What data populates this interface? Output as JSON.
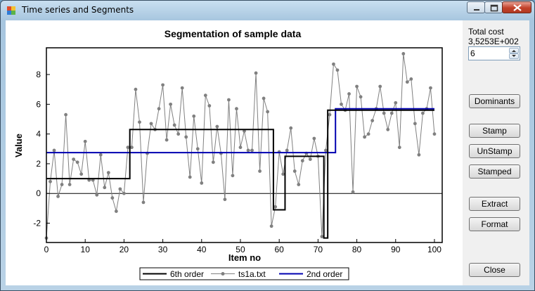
{
  "window": {
    "title": "Time series and Segments"
  },
  "side": {
    "total_cost_label": "Total cost",
    "total_cost_value": "3,5253E+002",
    "segments_value": "6",
    "buttons": {
      "dominants": "Dominants",
      "stamp": "Stamp",
      "unstamp": "UnStamp",
      "stamped": "Stamped",
      "extract": "Extract",
      "format": "Format",
      "close": "Close"
    }
  },
  "chart_data": {
    "type": "line",
    "title": "Segmentation of sample data",
    "xlabel": "Item no",
    "ylabel": "Value",
    "xlim": [
      0,
      102
    ],
    "ylim": [
      -3.3,
      9.8
    ],
    "xticks": [
      0,
      10,
      20,
      30,
      40,
      50,
      60,
      70,
      80,
      90,
      100
    ],
    "yticks": [
      -2,
      0,
      2,
      4,
      6,
      8
    ],
    "zero_line": true,
    "legend_position": "bottom",
    "colors": {
      "sixth_order": "#000000",
      "series": "#808080",
      "second_order": "#0000b0"
    },
    "series": [
      {
        "name": "6th order",
        "type": "step",
        "points": [
          [
            0,
            1.0
          ],
          [
            21.5,
            1.0
          ],
          [
            21.5,
            4.3
          ],
          [
            58.5,
            4.3
          ],
          [
            58.5,
            -1.1
          ],
          [
            61.5,
            -1.1
          ],
          [
            61.5,
            2.5
          ],
          [
            71.5,
            2.5
          ],
          [
            71.5,
            -3.0
          ],
          [
            72.5,
            -3.0
          ],
          [
            72.5,
            5.6
          ],
          [
            100,
            5.6
          ]
        ]
      },
      {
        "name": "ts1a.txt",
        "type": "line-markers",
        "x_start": 0,
        "values": [
          -3.0,
          0.8,
          2.9,
          -0.2,
          0.6,
          5.3,
          0.6,
          2.3,
          2.1,
          1.3,
          3.5,
          0.9,
          0.9,
          -0.1,
          2.6,
          0.4,
          1.4,
          -0.3,
          -1.2,
          0.3,
          0.0,
          3.1,
          3.1,
          7.0,
          4.8,
          -0.6,
          2.7,
          4.7,
          4.3,
          5.7,
          7.3,
          3.6,
          6.0,
          4.6,
          4.0,
          7.1,
          3.8,
          1.1,
          5.2,
          3.0,
          0.7,
          6.6,
          5.9,
          2.1,
          4.5,
          2.7,
          -0.4,
          6.3,
          1.2,
          5.7,
          3.1,
          4.2,
          2.9,
          2.9,
          8.1,
          1.5,
          6.4,
          5.5,
          -2.2,
          -0.9,
          2.8,
          1.3,
          2.9,
          4.4,
          1.5,
          0.6,
          2.2,
          2.7,
          2.3,
          3.7,
          2.5,
          -2.9,
          2.9,
          5.3,
          8.7,
          8.3,
          6.0,
          5.6,
          6.7,
          0.1,
          7.2,
          6.5,
          3.8,
          4.0,
          4.9,
          5.7,
          7.2,
          5.4,
          4.3,
          5.4,
          6.1,
          3.1,
          9.4,
          7.5,
          7.7,
          4.7,
          2.6,
          5.4,
          5.7,
          7.1,
          4.0
        ]
      },
      {
        "name": "2nd order",
        "type": "step",
        "points": [
          [
            0,
            2.75
          ],
          [
            74.5,
            2.75
          ],
          [
            74.5,
            5.7
          ],
          [
            100,
            5.7
          ]
        ]
      }
    ]
  }
}
